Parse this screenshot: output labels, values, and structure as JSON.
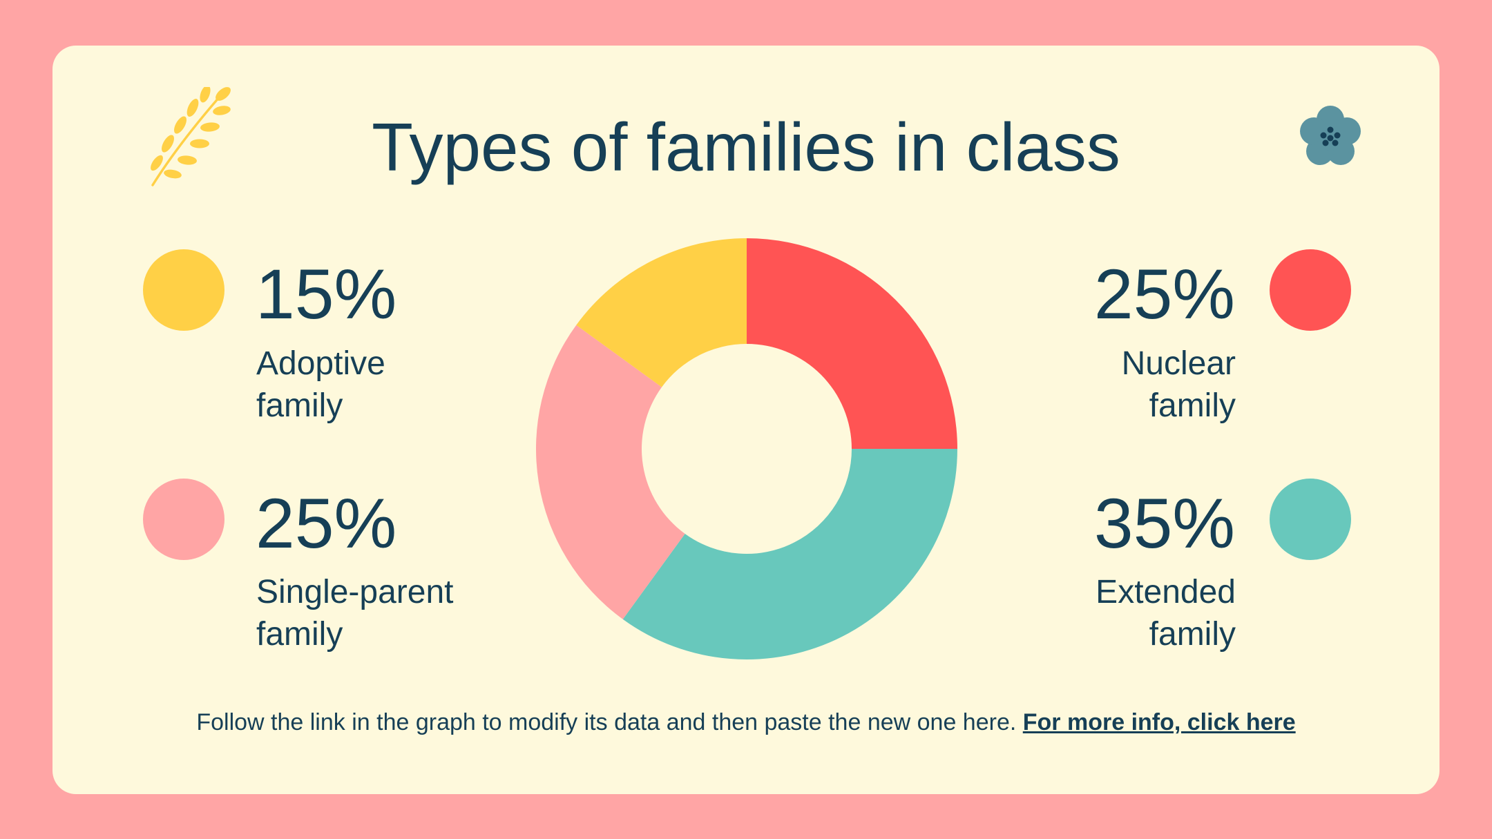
{
  "title": "Types of families in class",
  "chart_data": {
    "type": "pie",
    "style": "donut",
    "title": "Types of families in class",
    "series": [
      {
        "name": "Nuclear family",
        "label_lines": [
          "Nuclear",
          "family"
        ],
        "value": 25,
        "display": "25%",
        "color": "#FF5454"
      },
      {
        "name": "Extended family",
        "label_lines": [
          "Extended",
          "family"
        ],
        "value": 35,
        "display": "35%",
        "color": "#68C8BC"
      },
      {
        "name": "Single-parent family",
        "label_lines": [
          "Single-parent",
          "family"
        ],
        "value": 25,
        "display": "25%",
        "color": "#FFA5A5"
      },
      {
        "name": "Adoptive family",
        "label_lines": [
          "Adoptive",
          "family"
        ],
        "value": 15,
        "display": "15%",
        "color": "#FFD046"
      }
    ]
  },
  "footer": {
    "text": "Follow the link in the graph to modify its data and then paste the new one here.",
    "link_label": "For more info, click here"
  },
  "icons": {
    "top_left": "leaf-branch-icon",
    "top_right": "flower-icon"
  },
  "colors": {
    "background": "#FFA5A5",
    "card": "#FEF9DC",
    "text": "#163F56"
  }
}
